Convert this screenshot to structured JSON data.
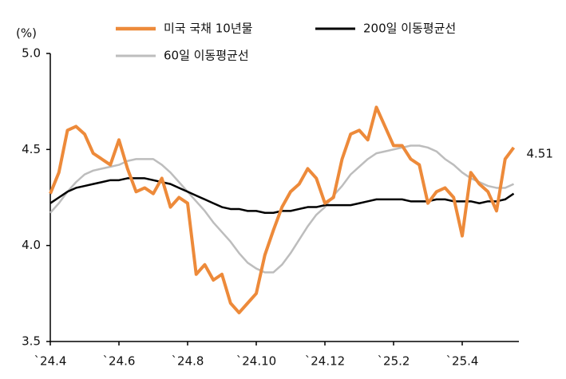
{
  "chart_data": {
    "type": "line",
    "y_label": "(%)",
    "categories": [
      "`24.4",
      null,
      null,
      null,
      null,
      null,
      null,
      null,
      "`24.6",
      null,
      null,
      null,
      null,
      null,
      null,
      null,
      "`24.8",
      null,
      null,
      null,
      null,
      null,
      null,
      null,
      "`24.10",
      null,
      null,
      null,
      null,
      null,
      null,
      null,
      "`24.12",
      null,
      null,
      null,
      null,
      null,
      null,
      null,
      "`25.2",
      null,
      null,
      null,
      null,
      null,
      null,
      null,
      "`25.4",
      null,
      null,
      null,
      null,
      null,
      null
    ],
    "series": [
      {
        "name": "미국 국채 10년물",
        "color": "#ed8a3a",
        "width": 4,
        "values": [
          4.27,
          4.38,
          4.6,
          4.62,
          4.58,
          4.48,
          4.45,
          4.42,
          4.55,
          4.4,
          4.28,
          4.3,
          4.27,
          4.35,
          4.2,
          4.25,
          4.22,
          3.85,
          3.9,
          3.82,
          3.85,
          3.7,
          3.65,
          3.7,
          3.75,
          3.95,
          4.08,
          4.2,
          4.28,
          4.32,
          4.4,
          4.35,
          4.22,
          4.25,
          4.45,
          4.58,
          4.6,
          4.55,
          4.72,
          4.62,
          4.52,
          4.52,
          4.45,
          4.42,
          4.22,
          4.28,
          4.3,
          4.25,
          4.05,
          4.38,
          4.32,
          4.28,
          4.18,
          4.45,
          4.51
        ]
      },
      {
        "name": "200일 이동평균선",
        "color": "#000000",
        "width": 2.5,
        "values": [
          4.22,
          4.25,
          4.28,
          4.3,
          4.31,
          4.32,
          4.33,
          4.34,
          4.34,
          4.35,
          4.35,
          4.35,
          4.34,
          4.33,
          4.32,
          4.3,
          4.28,
          4.26,
          4.24,
          4.22,
          4.2,
          4.19,
          4.19,
          4.18,
          4.18,
          4.17,
          4.17,
          4.18,
          4.18,
          4.19,
          4.2,
          4.2,
          4.21,
          4.21,
          4.21,
          4.21,
          4.22,
          4.23,
          4.24,
          4.24,
          4.24,
          4.24,
          4.23,
          4.23,
          4.23,
          4.24,
          4.24,
          4.23,
          4.23,
          4.23,
          4.22,
          4.23,
          4.23,
          4.24,
          4.27
        ]
      },
      {
        "name": "60일 이동평균선",
        "color": "#bdbdbd",
        "width": 2.5,
        "values": [
          4.17,
          4.22,
          4.28,
          4.33,
          4.37,
          4.39,
          4.4,
          4.41,
          4.42,
          4.44,
          4.45,
          4.45,
          4.45,
          4.42,
          4.38,
          4.33,
          4.28,
          4.23,
          4.18,
          4.12,
          4.07,
          4.02,
          3.96,
          3.91,
          3.88,
          3.86,
          3.86,
          3.9,
          3.96,
          4.03,
          4.1,
          4.16,
          4.2,
          4.26,
          4.31,
          4.37,
          4.41,
          4.45,
          4.48,
          4.49,
          4.5,
          4.51,
          4.52,
          4.52,
          4.51,
          4.49,
          4.45,
          4.42,
          4.38,
          4.35,
          4.33,
          4.31,
          4.3,
          4.3,
          4.32
        ]
      }
    ],
    "ylim": [
      3.5,
      5.0
    ],
    "yticks": [
      3.5,
      {
        "value": 4,
        "label": "4.0"
      },
      4.5,
      {
        "value": 5,
        "label": "5.0"
      }
    ],
    "grid": false
  }
}
